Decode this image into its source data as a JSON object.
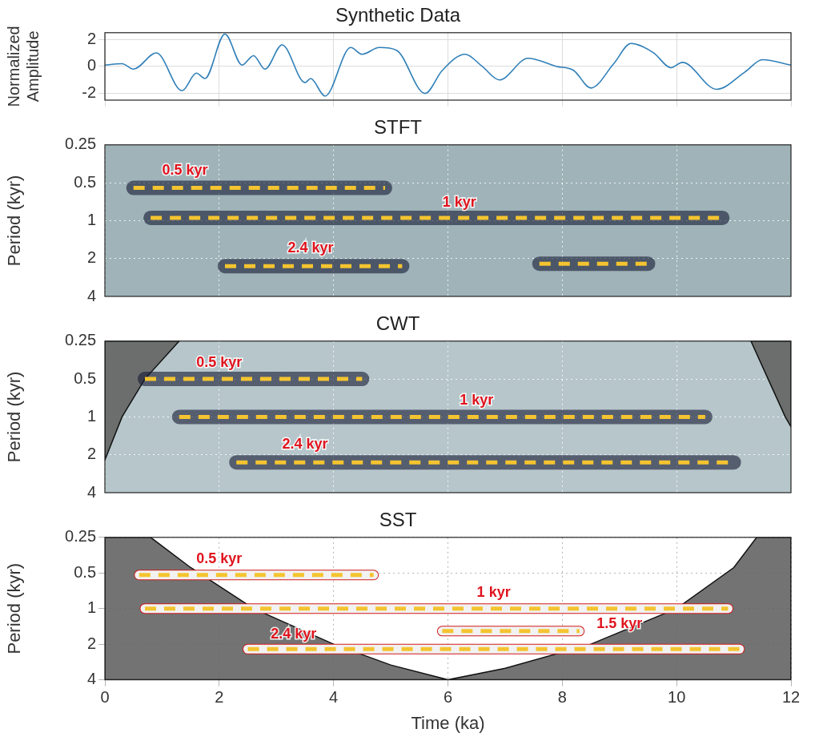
{
  "chart_data": [
    {
      "type": "line",
      "title": "Synthetic Data",
      "y_label": "Normalized Amplitude",
      "color": "#2f7fb8",
      "x": [
        0,
        0.3,
        0.5,
        0.9,
        1.35,
        1.6,
        1.75,
        2.1,
        2.4,
        2.6,
        2.8,
        3.1,
        3.5,
        3.6,
        3.85,
        4.3,
        4.5,
        4.8,
        5.1,
        5.6,
        5.9,
        6.3,
        6.6,
        6.9,
        7.4,
        7.9,
        8.2,
        8.5,
        8.9,
        9.2,
        9.6,
        9.9,
        10.1,
        10.7,
        11.2,
        11.5,
        12
      ],
      "values": [
        0.1,
        0.2,
        -0.2,
        1.0,
        -1.8,
        -0.5,
        -0.9,
        2.4,
        0.1,
        0.8,
        -0.2,
        1.6,
        -1.2,
        -0.9,
        -2.2,
        1.4,
        0.9,
        1.4,
        1.2,
        -2.0,
        -0.3,
        0.9,
        0.0,
        -1.0,
        0.6,
        0.0,
        -0.3,
        -1.6,
        0.2,
        1.7,
        1.0,
        -0.1,
        0.3,
        -1.7,
        -0.4,
        0.5,
        0.1
      ],
      "xlim": [
        0,
        12
      ],
      "xticks": [
        0,
        2,
        4,
        6,
        8,
        10,
        12
      ],
      "ylim": [
        -2.5,
        2.5
      ],
      "yticks": [
        -2,
        0,
        2
      ],
      "grid": true,
      "tick_labels": "y"
    },
    {
      "type": "contour",
      "title": "STFT",
      "y_label": "Period (kyr)",
      "log": "y",
      "color": "#9fb3b8",
      "xlim": [
        0,
        12
      ],
      "xticks": [
        0,
        2,
        4,
        6,
        8,
        10,
        12
      ],
      "ylim": [
        4,
        0.25
      ],
      "yticks": [
        0.25,
        0.5,
        1,
        2,
        4
      ],
      "grid": true,
      "tick_labels": "y",
      "ridges": [
        {
          "x": [
            0.5,
            4.9
          ],
          "period": [
            0.55,
            0.55
          ],
          "color": "#f4c430",
          "line_style": "dashed"
        },
        {
          "x": [
            0.8,
            10.8
          ],
          "period": [
            0.95,
            0.95
          ],
          "color": "#f4c430",
          "line_style": "dashed"
        },
        {
          "x": [
            2.1,
            5.2
          ],
          "period": [
            2.3,
            2.3
          ],
          "color": "#f4c430",
          "line_style": "dashed"
        },
        {
          "x": [
            7.6,
            9.5
          ],
          "period": [
            2.2,
            2.2
          ],
          "color": "#f4c430",
          "line_style": "dashed"
        }
      ],
      "annotations": [
        {
          "text": "0.5 kyr",
          "x": 1.4,
          "period": 0.4,
          "color": "#e0141e"
        },
        {
          "text": "1 kyr",
          "x": 6.2,
          "period": 0.72,
          "color": "#e0141e"
        },
        {
          "text": "2.4 kyr",
          "x": 3.6,
          "period": 1.65,
          "color": "#e0141e"
        }
      ]
    },
    {
      "type": "contour",
      "title": "CWT",
      "y_label": "Period (kyr)",
      "log": "y",
      "color": "#b6c6ca",
      "xlim": [
        0,
        12
      ],
      "xticks": [
        0,
        2,
        4,
        6,
        8,
        10,
        12
      ],
      "ylim": [
        4,
        0.25
      ],
      "yticks": [
        0.25,
        0.5,
        1,
        2,
        4
      ],
      "grid": true,
      "tick_labels": "y",
      "coi": [
        {
          "x": [
            0,
            1.3,
            0.7,
            0.3,
            0
          ],
          "period": [
            0.25,
            0.25,
            0.5,
            1,
            2.2
          ]
        },
        {
          "x": [
            11.3,
            12,
            12,
            11.9,
            11.6
          ],
          "period": [
            0.25,
            0.25,
            1.2,
            1,
            0.5
          ]
        }
      ],
      "ridges": [
        {
          "x": [
            0.7,
            4.5
          ],
          "period": [
            0.5,
            0.5
          ],
          "color": "#f4c430",
          "line_style": "dashed"
        },
        {
          "x": [
            1.3,
            10.5
          ],
          "period": [
            1,
            1
          ],
          "color": "#f4c430",
          "line_style": "dashed"
        },
        {
          "x": [
            2.3,
            11
          ],
          "period": [
            2.3,
            2.3
          ],
          "color": "#f4c430",
          "line_style": "dashed"
        }
      ],
      "annotations": [
        {
          "text": "0.5 kyr",
          "x": 2.0,
          "period": 0.37,
          "color": "#e0141e"
        },
        {
          "text": "1 kyr",
          "x": 6.5,
          "period": 0.74,
          "color": "#e0141e"
        },
        {
          "text": "2.4 kyr",
          "x": 3.5,
          "period": 1.65,
          "color": "#e0141e"
        }
      ]
    },
    {
      "type": "contour",
      "title": "SST",
      "x_label": "Time (ka)",
      "y_label": "Period (kyr)",
      "log": "y",
      "color": "#ffffff",
      "xlim": [
        0,
        12
      ],
      "xticks": [
        0,
        2,
        4,
        6,
        8,
        10,
        12
      ],
      "ylim": [
        4,
        0.25
      ],
      "yticks": [
        0.25,
        0.5,
        1,
        2,
        4
      ],
      "grid": true,
      "coi": [
        {
          "x": [
            0,
            0.8,
            1.5,
            2.6,
            4,
            5,
            6,
            7,
            8.5,
            10,
            11,
            11.4,
            12,
            12,
            0
          ],
          "period": [
            0.25,
            0.25,
            0.45,
            1,
            2,
            3,
            4,
            3.2,
            2,
            1,
            0.45,
            0.25,
            0.25,
            4,
            4
          ]
        }
      ],
      "ridges": [
        {
          "x": [
            0.6,
            4.7
          ],
          "period": [
            0.52,
            0.52
          ],
          "color": "#f4c430",
          "line_style": "dashed"
        },
        {
          "x": [
            0.7,
            10.9
          ],
          "period": [
            1,
            1
          ],
          "color": "#f4c430",
          "line_style": "dashed"
        },
        {
          "x": [
            5.9,
            8.3
          ],
          "period": [
            1.55,
            1.55
          ],
          "color": "#f4c430",
          "line_style": "dashed"
        },
        {
          "x": [
            2.5,
            11.1
          ],
          "period": [
            2.2,
            2.2
          ],
          "color": "#f4c430",
          "line_style": "dashed"
        }
      ],
      "annotations": [
        {
          "text": "0.5 kyr",
          "x": 2.0,
          "period": 0.38,
          "color": "#e0141e"
        },
        {
          "text": "1 kyr",
          "x": 6.8,
          "period": 0.74,
          "color": "#e0141e"
        },
        {
          "text": "1.5 kyr",
          "x": 9.0,
          "period": 1.35,
          "color": "#e0141e"
        },
        {
          "text": "2.4 kyr",
          "x": 3.3,
          "period": 1.65,
          "color": "#e0141e"
        }
      ]
    }
  ]
}
